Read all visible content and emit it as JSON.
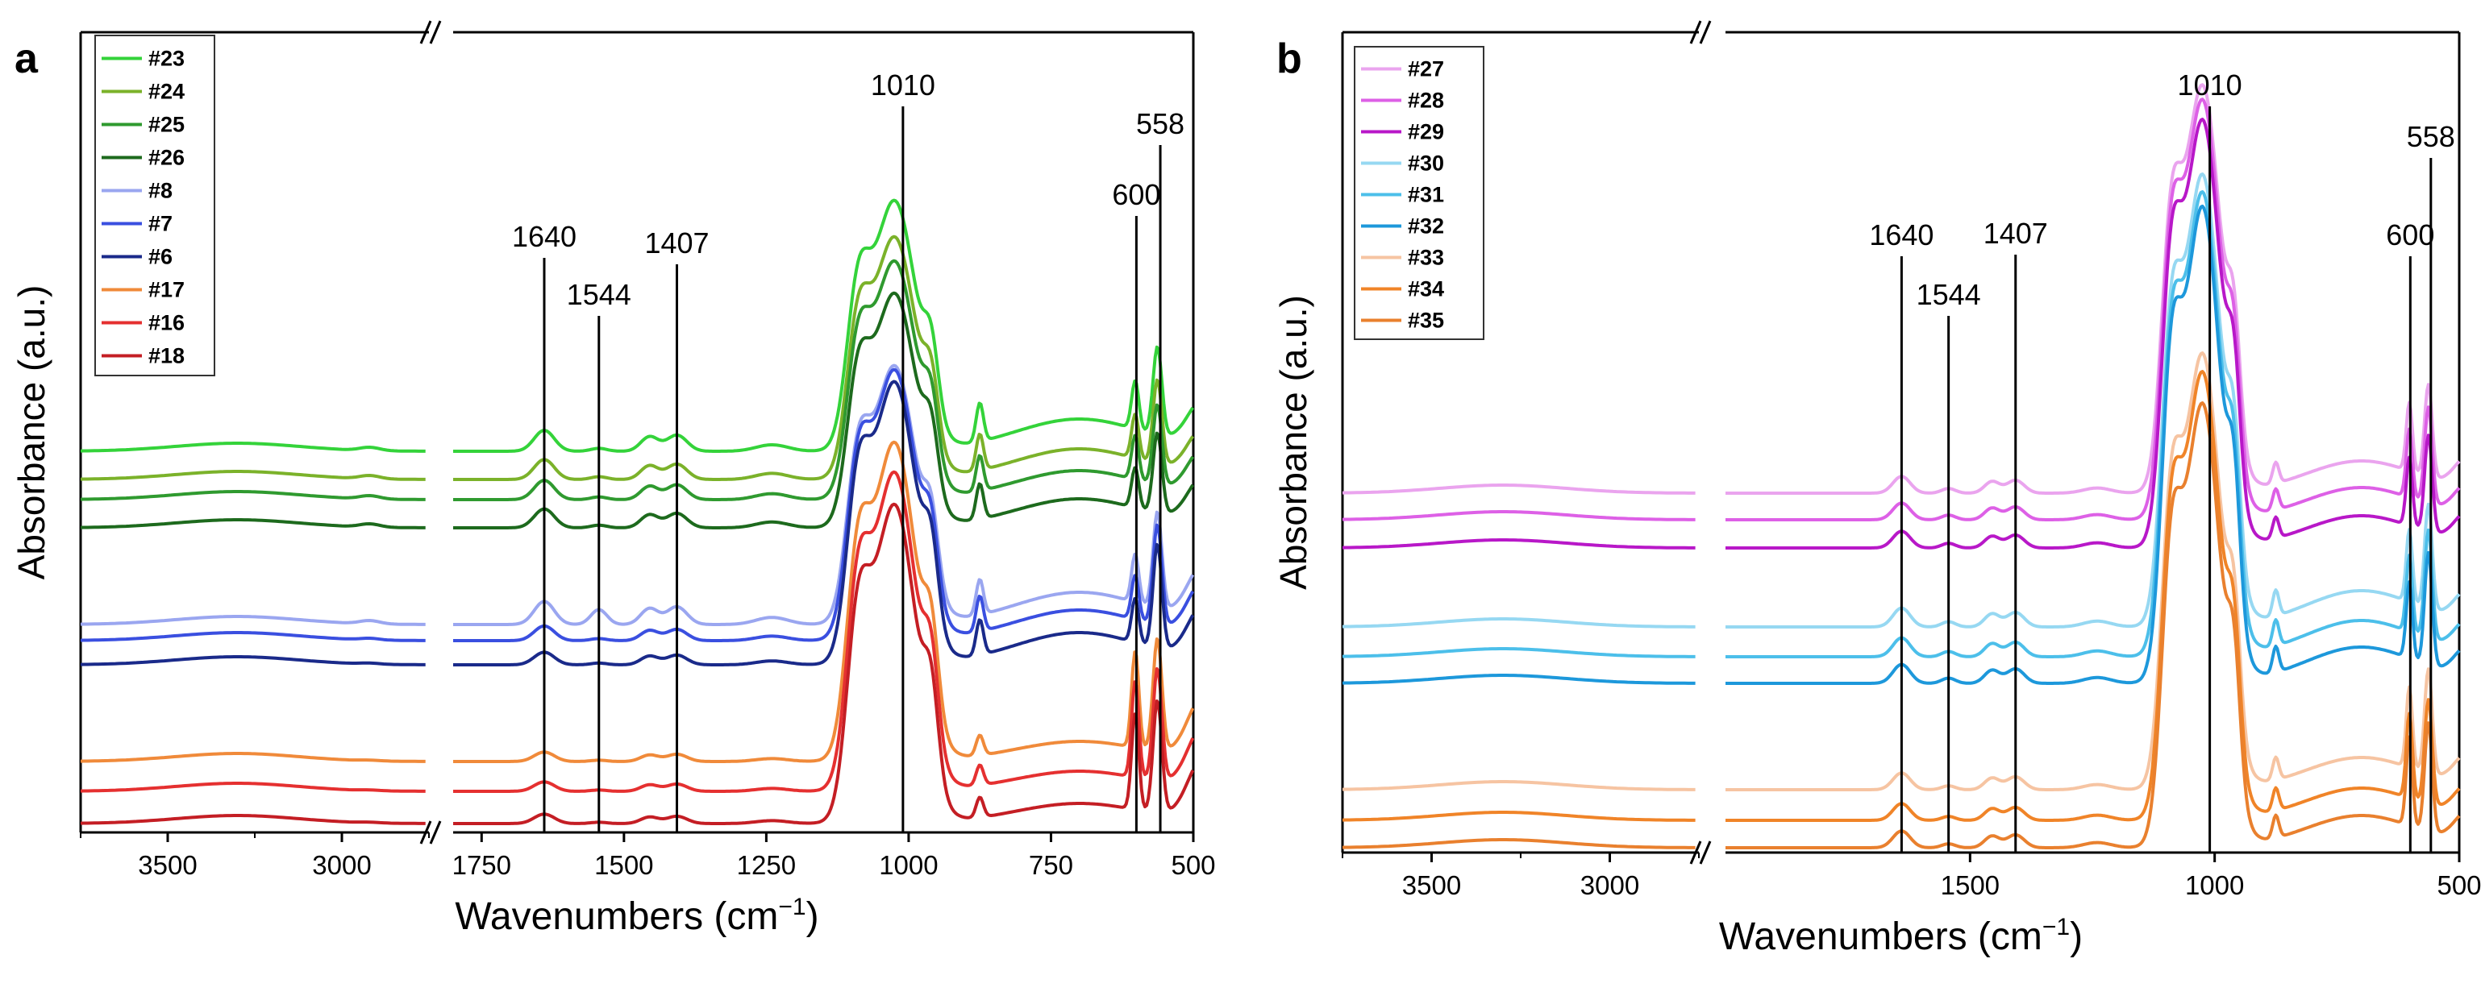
{
  "chart_data": [
    {
      "panel_label": "a",
      "type": "line",
      "xlabel_base": "Wavenumbers (cm",
      "xlabel_sup": "−1",
      "xlabel_close": ")",
      "ylabel": "Absorbance (a.u.)",
      "xlim_low_segment": [
        3750,
        2750
      ],
      "xlim_high_segment": [
        1800,
        500
      ],
      "xticks": [
        "3500",
        "3000",
        "1750",
        "1500",
        "1250",
        "1000",
        "750",
        "500"
      ],
      "peak_markers": [
        {
          "label": "1640",
          "x": 1640
        },
        {
          "label": "1544",
          "x": 1544
        },
        {
          "label": "1407",
          "x": 1407
        },
        {
          "label": "1010",
          "x": 1010
        },
        {
          "label": "600",
          "x": 600
        },
        {
          "label": "558",
          "x": 558
        }
      ],
      "legend_position": "top-left",
      "series": [
        {
          "name": "#23",
          "color": "#34d33a"
        },
        {
          "name": "#24",
          "color": "#7bb22a"
        },
        {
          "name": "#25",
          "color": "#2f9a2f"
        },
        {
          "name": "#26",
          "color": "#1d6a1d"
        },
        {
          "name": "#8",
          "color": "#9aa6f0"
        },
        {
          "name": "#7",
          "color": "#3a4fe0"
        },
        {
          "name": "#6",
          "color": "#1a2a8a"
        },
        {
          "name": "#17",
          "color": "#f08a3a"
        },
        {
          "name": "#16",
          "color": "#e53030"
        },
        {
          "name": "#18",
          "color": "#c41e24"
        }
      ]
    },
    {
      "panel_label": "b",
      "type": "line",
      "xlabel_base": "Wavenumbers (cm",
      "xlabel_sup": "−1",
      "xlabel_close": ")",
      "ylabel": "Absorbance (a.u.)",
      "xlim_low_segment": [
        3750,
        2750
      ],
      "xlim_high_segment": [
        2000,
        500
      ],
      "xticks": [
        "3500",
        "3000",
        "1500",
        "1000",
        "500"
      ],
      "peak_markers": [
        {
          "label": "1640",
          "x": 1640
        },
        {
          "label": "1544",
          "x": 1544
        },
        {
          "label": "1407",
          "x": 1407
        },
        {
          "label": "1010",
          "x": 1010
        },
        {
          "label": "600",
          "x": 600
        },
        {
          "label": "558",
          "x": 558
        }
      ],
      "legend_position": "top-left",
      "series": [
        {
          "name": "#27",
          "color": "#eaa4ee"
        },
        {
          "name": "#28",
          "color": "#dd60e6"
        },
        {
          "name": "#29",
          "color": "#b818c8"
        },
        {
          "name": "#30",
          "color": "#96d8f2"
        },
        {
          "name": "#31",
          "color": "#4cbfea"
        },
        {
          "name": "#32",
          "color": "#1d98db"
        },
        {
          "name": "#33",
          "color": "#f6c4a2"
        },
        {
          "name": "#34",
          "color": "#f08428"
        },
        {
          "name": "#35",
          "color": "#e9802e"
        }
      ]
    }
  ]
}
